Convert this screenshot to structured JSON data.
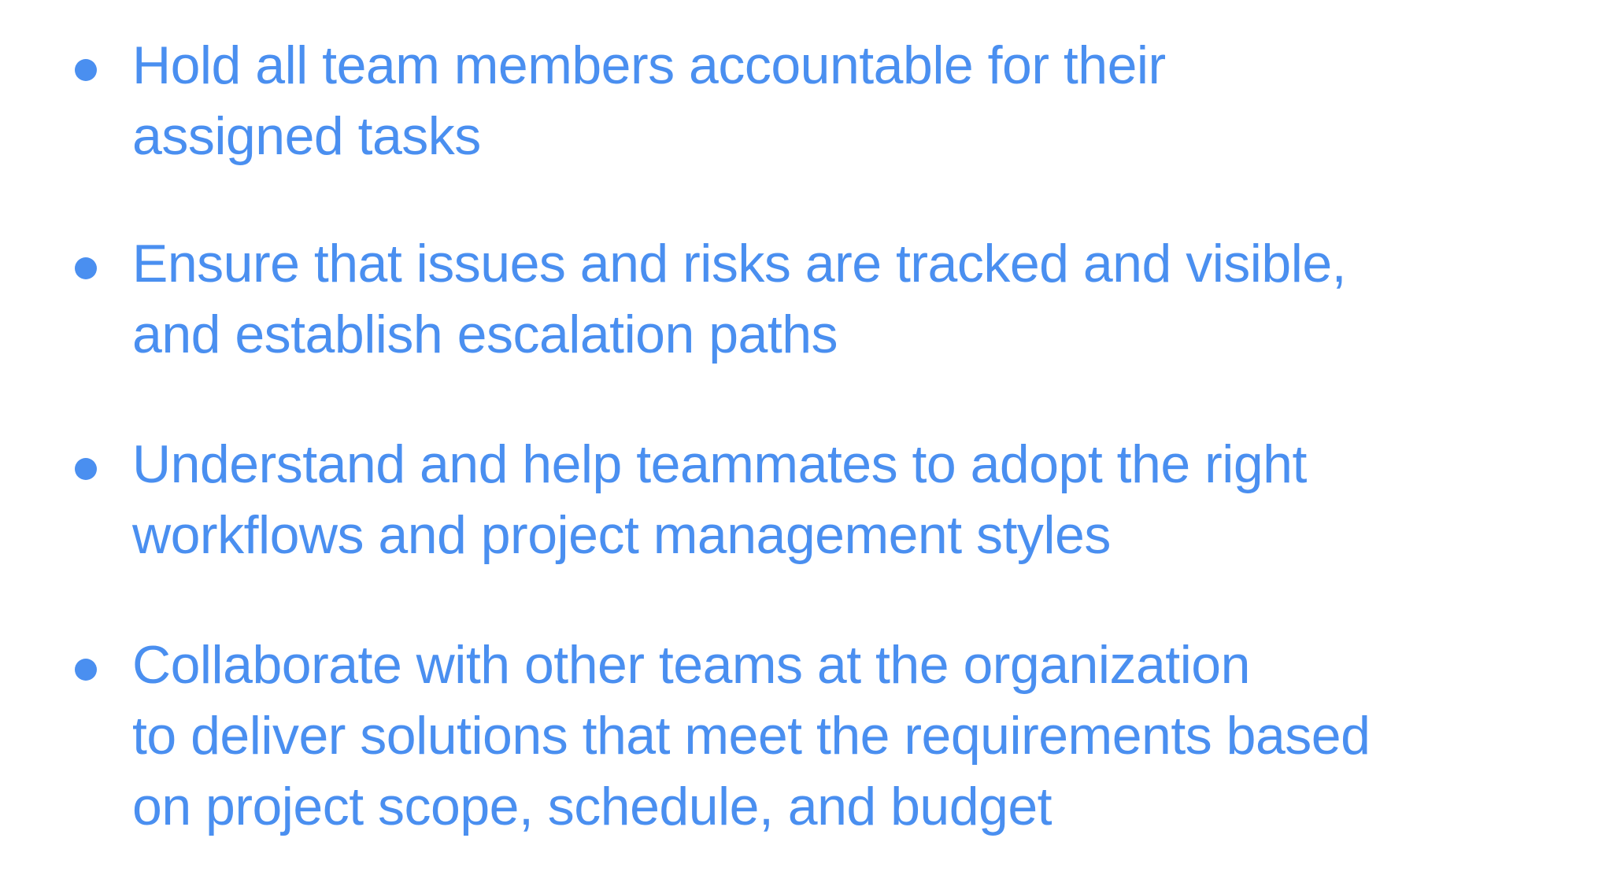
{
  "colors": {
    "text": "#4a8ff0",
    "bullet": "#4a8ff0",
    "background": "#ffffff"
  },
  "bullets": [
    {
      "lines": [
        "Hold all team members accountable for their",
        "assigned tasks"
      ]
    },
    {
      "lines": [
        "Ensure that issues and risks are tracked and visible,",
        "and establish escalation paths"
      ]
    },
    {
      "lines": [
        "Understand and help teammates to adopt the right",
        "workflows and project management styles"
      ]
    },
    {
      "lines": [
        "Collaborate with other teams at the organization",
        "to deliver solutions that meet the requirements based",
        "on project scope, schedule, and budget"
      ]
    }
  ]
}
